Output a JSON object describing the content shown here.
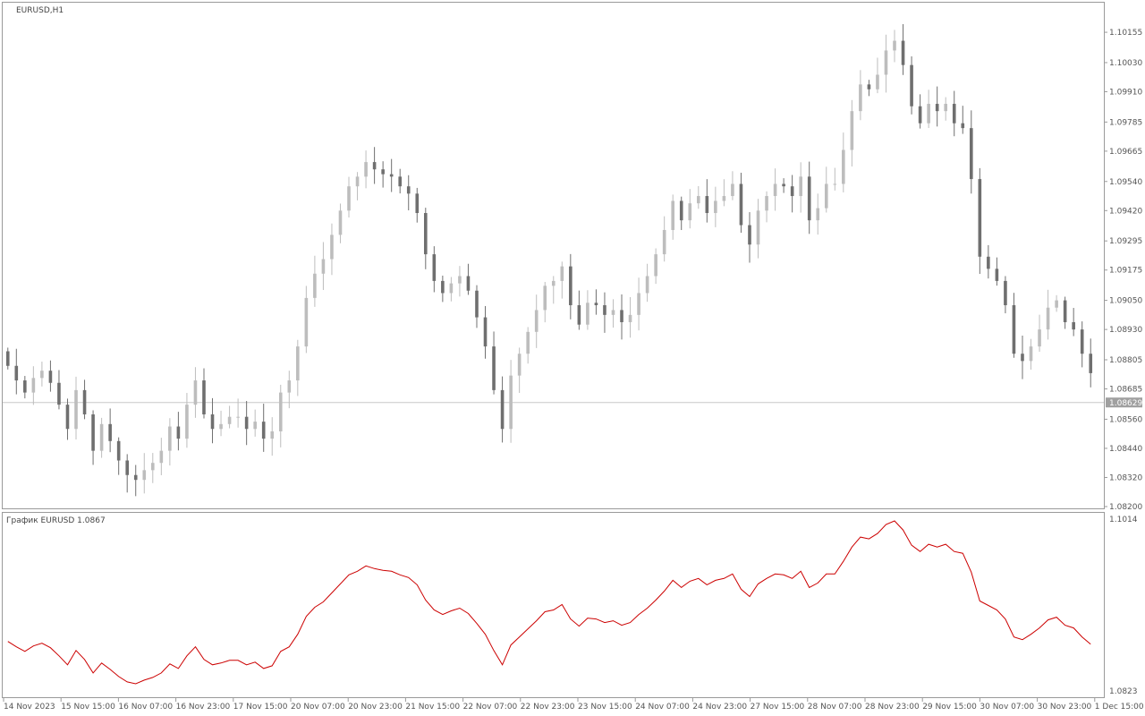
{
  "window": {
    "symbol_title": "EURUSD,H1",
    "indicator_title": "График EURUSD 1.0867"
  },
  "colors": {
    "background": "#ffffff",
    "frame": "#9a9a9a",
    "bull_candle": "#bdbdbd",
    "bear_candle": "#6f6f6f",
    "indicator_line": "#cc0000",
    "bid_line": "#c8c8c8",
    "price_tag_bg": "#a0a0a0",
    "price_tag_text": "#ffffff"
  },
  "chart_data": [
    {
      "type": "candlestick",
      "title": "EURUSD,H1",
      "ylim": [
        1.082,
        1.1017
      ],
      "y_ticks": [
        "1.10155",
        "1.10030",
        "1.09910",
        "1.09785",
        "1.09665",
        "1.09540",
        "1.09420",
        "1.09295",
        "1.09175",
        "1.09050",
        "1.08930",
        "1.08805",
        "1.08685",
        "1.08560",
        "1.08440",
        "1.08320",
        "1.08200"
      ],
      "current_price": "1.08629",
      "x_labels": [
        "14 Nov 2023",
        "15 Nov 15:00",
        "16 Nov 07:00",
        "16 Nov 23:00",
        "17 Nov 15:00",
        "20 Nov 07:00",
        "20 Nov 23:00",
        "21 Nov 15:00",
        "22 Nov 07:00",
        "22 Nov 23:00",
        "23 Nov 15:00",
        "24 Nov 07:00",
        "24 Nov 23:00",
        "27 Nov 15:00",
        "28 Nov 07:00",
        "28 Nov 23:00",
        "29 Nov 15:00",
        "30 Nov 07:00",
        "30 Nov 23:00",
        "1 Dec 15:00"
      ],
      "close_path": [
        1.0878,
        1.0872,
        1.0867,
        1.0873,
        1.0876,
        1.0871,
        1.0862,
        1.0852,
        1.0868,
        1.0858,
        1.0843,
        1.0854,
        1.0847,
        1.0839,
        1.0833,
        1.0831,
        1.0835,
        1.0838,
        1.0843,
        1.0853,
        1.0848,
        1.0862,
        1.0872,
        1.0858,
        1.0852,
        1.0854,
        1.0857,
        1.0857,
        1.0852,
        1.0855,
        1.0848,
        1.0851,
        1.0867,
        1.0872,
        1.0886,
        1.0906,
        1.0916,
        1.0922,
        1.0932,
        1.0942,
        1.0952,
        1.0956,
        1.0962,
        1.0959,
        1.0957,
        1.0956,
        1.0952,
        1.0949,
        1.0941,
        1.0924,
        1.0913,
        1.0908,
        1.0912,
        1.0915,
        1.0909,
        1.0898,
        1.0886,
        1.0868,
        1.0852,
        1.0874,
        1.0883,
        1.0892,
        1.0901,
        1.0911,
        1.0913,
        1.0919,
        1.0903,
        1.0895,
        1.0904,
        1.0903,
        1.0899,
        1.0901,
        1.0896,
        1.0899,
        1.0908,
        1.0915,
        1.0924,
        1.0934,
        1.0946,
        1.0938,
        1.0945,
        1.0948,
        1.0941,
        1.0946,
        1.0948,
        1.0953,
        1.0936,
        1.0928,
        1.0942,
        1.0948,
        1.0953,
        1.0952,
        1.0948,
        1.0956,
        1.0938,
        1.0943,
        1.0953,
        1.0953,
        1.0967,
        1.0983,
        1.0994,
        1.0992,
        1.0998,
        1.1008,
        1.1012,
        1.1002,
        1.0985,
        1.0978,
        1.0986,
        1.0983,
        1.0986,
        1.0978,
        1.0976,
        1.0955,
        1.0923,
        1.0918,
        1.0913,
        1.0903,
        1.0883,
        1.088,
        1.0886,
        1.0893,
        1.0902,
        1.0905,
        1.0896,
        1.0893,
        1.0883,
        1.0875
      ]
    },
    {
      "type": "line",
      "title": "График EURUSD 1.0867",
      "ylim": [
        1.0823,
        1.1014
      ],
      "y_ticks": [
        "1.1014",
        "1.0823"
      ]
    }
  ]
}
